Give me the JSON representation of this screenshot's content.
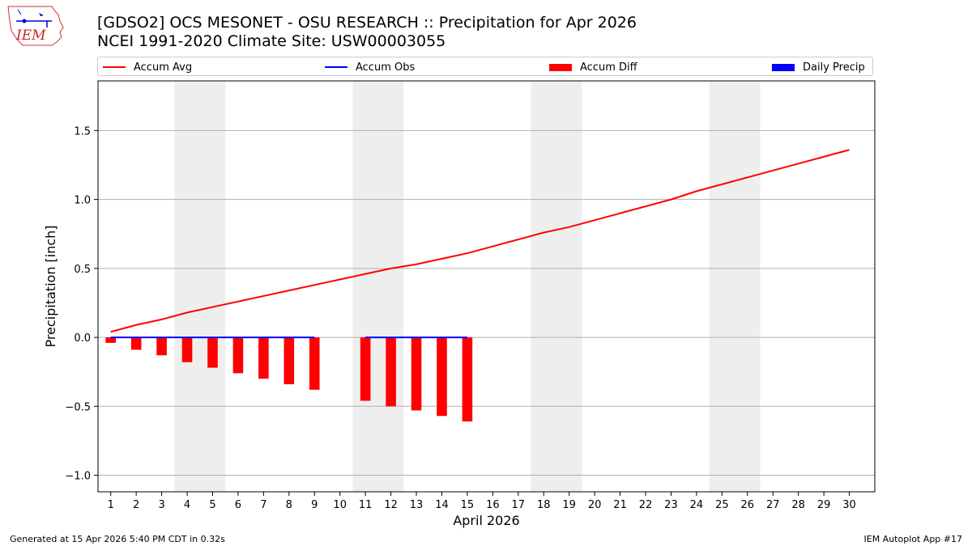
{
  "logo_text": "IEM",
  "title_line1": "[GDSO2] OCS MESONET - OSU RESEARCH :: Precipitation for Apr 2026",
  "title_line2": "NCEI 1991-2020 Climate Site: USW00003055",
  "legend": [
    {
      "label": "Accum Avg",
      "kind": "line",
      "color": "#ff0000"
    },
    {
      "label": "Accum Obs",
      "kind": "line",
      "color": "#0000ff"
    },
    {
      "label": "Accum Diff",
      "kind": "bar",
      "color": "#ff0000"
    },
    {
      "label": "Daily Precip",
      "kind": "bar",
      "color": "#0000ff"
    }
  ],
  "footer_left": "Generated at 15 Apr 2026 5:40 PM CDT in 0.32s",
  "footer_right": "IEM Autoplot App #17",
  "chart_data": {
    "type": "bar",
    "title": "[GDSO2] OCS MESONET - OSU RESEARCH :: Precipitation for Apr 2026",
    "subtitle": "NCEI 1991-2020 Climate Site: USW00003055",
    "xlabel": "April 2026",
    "ylabel": "Precipitation [inch]",
    "xlim": [
      0.5,
      31
    ],
    "ylim": [
      -1.12,
      1.86
    ],
    "y_ticks": [
      -1.0,
      -0.5,
      0.0,
      0.5,
      1.0,
      1.5
    ],
    "y_tick_labels": [
      "−1.0",
      "−0.5",
      "0.0",
      "0.5",
      "1.0",
      "1.5"
    ],
    "x_ticks": [
      1,
      2,
      3,
      4,
      5,
      6,
      7,
      8,
      9,
      10,
      11,
      12,
      13,
      14,
      15,
      16,
      17,
      18,
      19,
      20,
      21,
      22,
      23,
      24,
      25,
      26,
      27,
      28,
      29,
      30
    ],
    "grid": "y",
    "weekend_shading": [
      [
        4,
        5
      ],
      [
        11,
        12
      ],
      [
        18,
        19
      ],
      [
        25,
        26
      ]
    ],
    "series": [
      {
        "name": "Accum Avg",
        "kind": "line",
        "color": "#ff0000",
        "x": [
          1,
          2,
          3,
          4,
          5,
          6,
          7,
          8,
          9,
          10,
          11,
          12,
          13,
          14,
          15,
          16,
          17,
          18,
          19,
          20,
          21,
          22,
          23,
          24,
          25,
          26,
          27,
          28,
          29,
          30
        ],
        "values": [
          0.04,
          0.09,
          0.13,
          0.18,
          0.22,
          0.26,
          0.3,
          0.34,
          0.38,
          0.42,
          0.46,
          0.5,
          0.53,
          0.57,
          0.61,
          0.66,
          0.71,
          0.76,
          0.8,
          0.85,
          0.9,
          0.95,
          1.0,
          1.06,
          1.11,
          1.16,
          1.21,
          1.26,
          1.31,
          1.36
        ]
      },
      {
        "name": "Accum Obs",
        "kind": "line",
        "color": "#0000ff",
        "segments": [
          {
            "x": [
              1,
              2,
              3,
              4,
              5,
              6,
              7,
              8,
              9
            ],
            "values": [
              0,
              0,
              0,
              0,
              0,
              0,
              0,
              0,
              0
            ]
          },
          {
            "x": [
              11,
              12,
              13,
              14,
              15
            ],
            "values": [
              0,
              0,
              0,
              0,
              0
            ]
          }
        ]
      },
      {
        "name": "Accum Diff",
        "kind": "bar",
        "color": "#ff0000",
        "x": [
          1,
          2,
          3,
          4,
          5,
          6,
          7,
          8,
          9,
          11,
          12,
          13,
          14,
          15
        ],
        "values": [
          -0.04,
          -0.09,
          -0.13,
          -0.18,
          -0.22,
          -0.26,
          -0.3,
          -0.34,
          -0.38,
          -0.46,
          -0.5,
          -0.53,
          -0.57,
          -0.61
        ]
      },
      {
        "name": "Daily Precip",
        "kind": "bar",
        "color": "#0000ff",
        "x": [],
        "values": []
      }
    ]
  }
}
